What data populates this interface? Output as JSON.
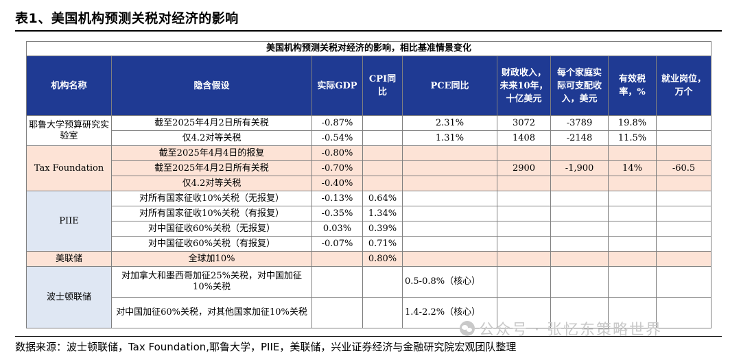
{
  "title": "表1、美国机构预测关税对经济的影响",
  "table_caption": "美国机构预测关税对经济的影响，相比基准情景变化",
  "headers": {
    "org": "机构名称",
    "assumption": "隐含假设",
    "gdp": "实际GDP",
    "cpi": "CPI同比",
    "pce": "PCE同比",
    "fiscal": "财政收入，未来10年，十亿美元",
    "income": "每个家庭实际可支配收入，美元",
    "tax_rate": "有效税率，%",
    "jobs": "就业岗位，万个"
  },
  "rows": {
    "yale_org": "耶鲁大学预算研究实验室",
    "yale1": {
      "assumption": "截至2025年4月2日所有关税",
      "gdp": "-0.87%",
      "cpi": "",
      "pce": "2.31%",
      "fiscal": "3072",
      "income": "-3789",
      "tax_rate": "19.8%",
      "jobs": ""
    },
    "yale2": {
      "assumption": "仅4.2对等关税",
      "gdp": "-0.54%",
      "cpi": "",
      "pce": "1.31%",
      "fiscal": "1408",
      "income": "-2148",
      "tax_rate": "11.5%",
      "jobs": ""
    },
    "tf_org": "Tax Foundation",
    "tf1": {
      "assumption": "截至2025年4月4日的报复",
      "gdp": "-0.80%",
      "cpi": "",
      "pce": "",
      "fiscal": "",
      "income": "",
      "tax_rate": "",
      "jobs": ""
    },
    "tf2": {
      "assumption": "截至2025年4月2日所有关税",
      "gdp": "-0.70%",
      "cpi": "",
      "pce": "",
      "fiscal": "2900",
      "income": "-1,900",
      "tax_rate": "14%",
      "jobs": "-60.5"
    },
    "tf3": {
      "assumption": "仅4.2对等关税",
      "gdp": "-0.40%",
      "cpi": "",
      "pce": "",
      "fiscal": "",
      "income": "",
      "tax_rate": "",
      "jobs": ""
    },
    "piie_org": "PIIE",
    "piie1": {
      "assumption": "对所有国家征收10%关税（无报复）",
      "gdp": "-0.13%",
      "cpi": "0.64%"
    },
    "piie2": {
      "assumption": "对所有国家征收10%关税（有报复）",
      "gdp": "-0.35%",
      "cpi": "1.34%"
    },
    "piie3": {
      "assumption": "对中国征收60%关税（无报复）",
      "gdp": "0.03%",
      "cpi": "0.39%"
    },
    "piie4": {
      "assumption": "对中国征收60%关税（有报复）",
      "gdp": "-0.07%",
      "cpi": "0.71%"
    },
    "ml_org": "美联储",
    "ml1": {
      "assumption": "全球加10%",
      "gdp": "",
      "cpi": "0.80%"
    },
    "bos_org": "波士顿联储",
    "bos1": {
      "assumption": "对加拿大和墨西哥加征25%关税，对中国加征10%关税",
      "pce": "0.5-0.8%（核心）"
    },
    "bos2": {
      "assumption": "对中国加征60%关税，对其他国家加征10%关税",
      "pce": "1.4-2.2%（核心）"
    }
  },
  "source": "数据来源：波士顿联储，Tax Foundation,耶鲁大学，PIIE，美联储，兴业证券经济与金融研究院宏观团队整理",
  "watermark": "公众号 · 张忆东策略世界",
  "colors": {
    "header_bg": "#1f3a93",
    "pink": "#fde3d6",
    "light_blue": "#dfe7f3"
  }
}
